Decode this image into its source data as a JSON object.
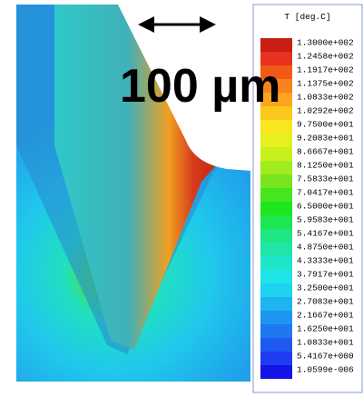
{
  "scale_bar": {
    "label": "100 µm"
  },
  "legend": {
    "title": "T [deg.C]",
    "entries": [
      {
        "label": "1.3000e+002",
        "color": "#c81e14"
      },
      {
        "label": "1.2458e+002",
        "color": "#e6321e"
      },
      {
        "label": "1.1917e+002",
        "color": "#f05a14"
      },
      {
        "label": "1.1375e+002",
        "color": "#f8821e"
      },
      {
        "label": "1.0833e+002",
        "color": "#fca51e"
      },
      {
        "label": "1.0292e+002",
        "color": "#fcc81e"
      },
      {
        "label": "9.7500e+001",
        "color": "#f8e61e"
      },
      {
        "label": "9.2083e+001",
        "color": "#e6f01e"
      },
      {
        "label": "8.6667e+001",
        "color": "#c8f01e"
      },
      {
        "label": "8.1250e+001",
        "color": "#a0ec1e"
      },
      {
        "label": "7.5833e+001",
        "color": "#78e61e"
      },
      {
        "label": "7.0417e+001",
        "color": "#46e61e"
      },
      {
        "label": "6.5000e+001",
        "color": "#1ee61e"
      },
      {
        "label": "5.9583e+001",
        "color": "#1ee650"
      },
      {
        "label": "5.4167e+001",
        "color": "#1ee682"
      },
      {
        "label": "4.8750e+001",
        "color": "#1ee6aa"
      },
      {
        "label": "4.3333e+001",
        "color": "#1ee6c8"
      },
      {
        "label": "3.7917e+001",
        "color": "#1ee6e6"
      },
      {
        "label": "3.2500e+001",
        "color": "#1ed2f0"
      },
      {
        "label": "2.7083e+001",
        "color": "#1eb4f0"
      },
      {
        "label": "2.1667e+001",
        "color": "#1e96f0"
      },
      {
        "label": "1.6250e+001",
        "color": "#1e78f0"
      },
      {
        "label": "1.0833e+001",
        "color": "#1e5af0"
      },
      {
        "label": "5.4167e+000",
        "color": "#1e3cf0"
      },
      {
        "label": "1.0599e-006",
        "color": "#1414e6"
      }
    ]
  }
}
